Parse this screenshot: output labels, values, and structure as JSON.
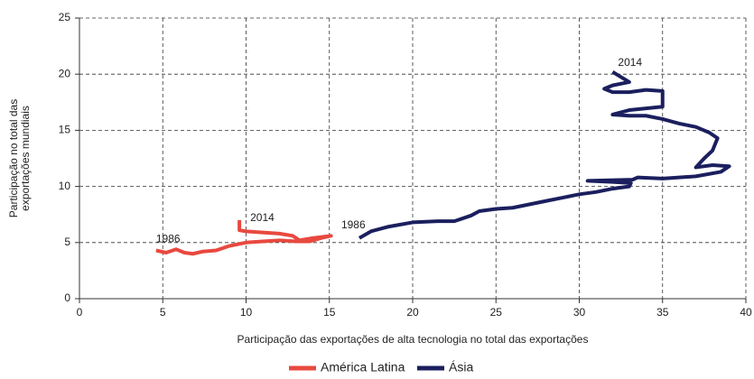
{
  "chart_data": {
    "type": "line",
    "x_label": "Participação das exportações de alta tecnologia no total das exportações",
    "y_label_lines": [
      "Participação no total das",
      "exportações mundiais"
    ],
    "xlim": [
      0,
      40
    ],
    "xticks": [
      0,
      5,
      10,
      15,
      20,
      25,
      30,
      35,
      40
    ],
    "ylim": [
      0,
      25
    ],
    "yticks": [
      0,
      5,
      10,
      15,
      20,
      25
    ],
    "grid": true,
    "legend": "bottom",
    "series": [
      {
        "name": "América Latina",
        "color": "#e8493f",
        "start_label": "1986",
        "end_label": "2014",
        "x": [
          4.6,
          5.2,
          5.8,
          6.3,
          6.8,
          7.4,
          8.2,
          9,
          10,
          11,
          12,
          13,
          13.8,
          14.5,
          15.1,
          14,
          13.2,
          12.8,
          12,
          11,
          10,
          9.6,
          9.6
        ],
        "values": [
          4.3,
          4.1,
          4.4,
          4.1,
          4.0,
          4.2,
          4.3,
          4.7,
          5.0,
          5.1,
          5.2,
          5.1,
          5.1,
          5.4,
          5.6,
          5.4,
          5.2,
          5.6,
          5.8,
          5.9,
          6.0,
          6.1,
          7.0
        ]
      },
      {
        "name": "Ásia",
        "color": "#1b1f5e",
        "start_label": "1986",
        "end_label": "2014",
        "x": [
          16.8,
          17.5,
          18.5,
          20,
          21.5,
          22.5,
          23.5,
          24,
          25,
          26,
          27,
          28,
          29,
          30,
          31,
          32,
          33,
          33.1,
          32,
          30.5,
          33.2,
          33.5,
          35,
          37,
          38.5,
          39,
          38,
          37,
          37.5,
          38,
          38.3,
          37.8,
          37,
          36,
          35,
          34,
          33,
          32,
          33,
          35,
          35,
          34,
          33,
          32,
          31.5,
          32,
          33,
          32
        ],
        "values": [
          5.4,
          6.0,
          6.4,
          6.8,
          6.9,
          6.9,
          7.4,
          7.8,
          8.0,
          8.1,
          8.4,
          8.7,
          9.0,
          9.3,
          9.5,
          9.8,
          10.0,
          10.3,
          10.4,
          10.5,
          10.6,
          10.8,
          10.7,
          10.9,
          11.3,
          11.8,
          11.9,
          11.7,
          12.5,
          13.2,
          14.3,
          14.8,
          15.3,
          15.6,
          16.0,
          16.3,
          16.3,
          16.4,
          16.8,
          17.1,
          18.5,
          18.6,
          18.4,
          18.4,
          18.7,
          19.0,
          19.3,
          20.2
        ]
      }
    ]
  }
}
